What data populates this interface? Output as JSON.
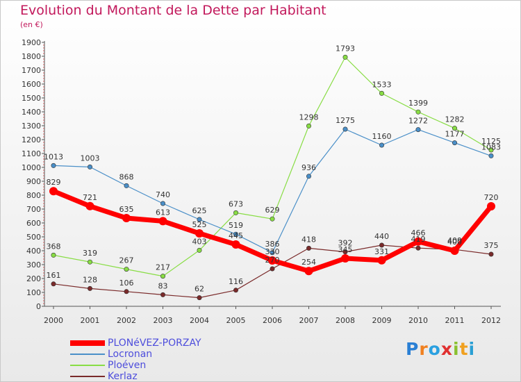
{
  "chart_data": {
    "type": "line",
    "title": "Evolution du Montant de la Dette par Habitant",
    "subtitle": "(en €)",
    "x": [
      "2000",
      "2001",
      "2002",
      "2003",
      "2004",
      "2005",
      "2006",
      "2007",
      "2008",
      "2009",
      "2010",
      "2011",
      "2012"
    ],
    "ylim": [
      0,
      1900
    ],
    "yticks": [
      0,
      100,
      200,
      300,
      400,
      500,
      600,
      700,
      800,
      900,
      1000,
      1100,
      1200,
      1300,
      1400,
      1500,
      1600,
      1700,
      1800,
      1900
    ],
    "grid": false,
    "legend_position": "bottom-left",
    "series": [
      {
        "name": "PLONéVEZ-PORZAY",
        "color": "#ff0000",
        "values": [
          829,
          721,
          635,
          613,
          525,
          445,
          330,
          254,
          345,
          331,
          466,
          400,
          720
        ],
        "labels": [
          "829",
          "721",
          "635",
          "613",
          "525",
          "445",
          "330",
          "254",
          "345",
          "331",
          "466",
          "400",
          "720"
        ]
      },
      {
        "name": "Locronan",
        "color": "#4a8fc8",
        "values": [
          1013,
          1003,
          868,
          740,
          625,
          519,
          386,
          936,
          1275,
          1160,
          1272,
          1177,
          1083
        ],
        "labels": [
          "1013",
          "1003",
          "868",
          "740",
          "625",
          "519",
          "386",
          "936",
          "1275",
          "1160",
          "1272",
          "1177",
          "1083"
        ]
      },
      {
        "name": "Ploéven",
        "color": "#88dd44",
        "values": [
          368,
          319,
          267,
          217,
          403,
          673,
          629,
          1298,
          1793,
          1533,
          1399,
          1282,
          1125
        ],
        "labels": [
          "368",
          "319",
          "267",
          "217",
          "403",
          "673",
          "629",
          "1298",
          "1793",
          "1533",
          "1399",
          "1282",
          "1125"
        ]
      },
      {
        "name": "Kerlaz",
        "color": "#7a2a2a",
        "values": [
          161,
          128,
          106,
          83,
          62,
          116,
          270,
          418,
          392,
          440,
          419,
          409,
          375
        ],
        "labels": [
          "161",
          "128",
          "106",
          "83",
          "62",
          "116",
          "270",
          "418",
          "392",
          "440",
          "419",
          "409",
          "375"
        ]
      }
    ]
  },
  "brand": {
    "text": [
      "P",
      "r",
      "o",
      "x",
      "i",
      "t",
      "i"
    ],
    "colors": [
      "#2a7fd4",
      "#f08020",
      "#2aa0e0",
      "#e03030",
      "#8ac030",
      "#f0a020",
      "#2a9fd4"
    ]
  }
}
